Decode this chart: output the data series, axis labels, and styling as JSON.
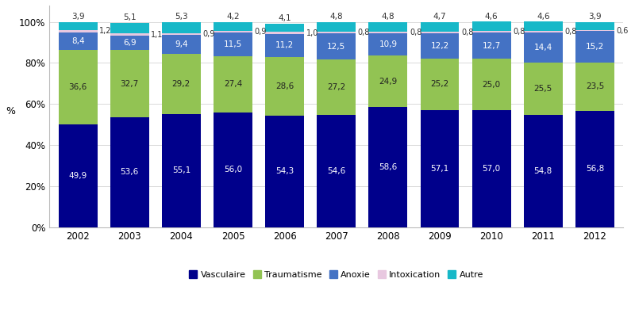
{
  "years": [
    "2002",
    "2003",
    "2004",
    "2005",
    "2006",
    "2007",
    "2008",
    "2009",
    "2010",
    "2011",
    "2012"
  ],
  "vasculaire": [
    49.9,
    53.6,
    55.1,
    56.0,
    54.3,
    54.6,
    58.6,
    57.1,
    57.0,
    54.8,
    56.8
  ],
  "traumatisme": [
    36.6,
    32.7,
    29.2,
    27.4,
    28.6,
    27.2,
    24.9,
    25.2,
    25.0,
    25.5,
    23.5
  ],
  "anoxie": [
    8.4,
    6.9,
    9.4,
    11.5,
    11.2,
    12.5,
    10.9,
    12.2,
    12.7,
    14.4,
    15.2
  ],
  "intoxication": [
    1.2,
    1.1,
    0.9,
    0.9,
    1.0,
    0.8,
    0.8,
    0.8,
    0.8,
    0.8,
    0.6
  ],
  "autre": [
    3.9,
    5.1,
    5.3,
    4.2,
    4.1,
    4.8,
    4.8,
    4.7,
    4.6,
    4.6,
    3.9
  ],
  "colors": {
    "vasculaire": "#00008B",
    "traumatisme": "#92C353",
    "anoxie": "#4472C4",
    "intoxication": "#E8C8E0",
    "autre": "#17B8C8"
  },
  "ylabel": "%",
  "yticks": [
    0,
    20,
    40,
    60,
    80,
    100
  ],
  "ytick_labels": [
    "0%",
    "20%",
    "40%",
    "60%",
    "80%",
    "100%"
  ],
  "legend_labels": [
    "Vasculaire",
    "Traumatisme",
    "Anoxie",
    "Intoxication",
    "Autre"
  ],
  "bar_width": 0.75,
  "fontsize_inner": 7.5,
  "fontsize_label": 7.5
}
